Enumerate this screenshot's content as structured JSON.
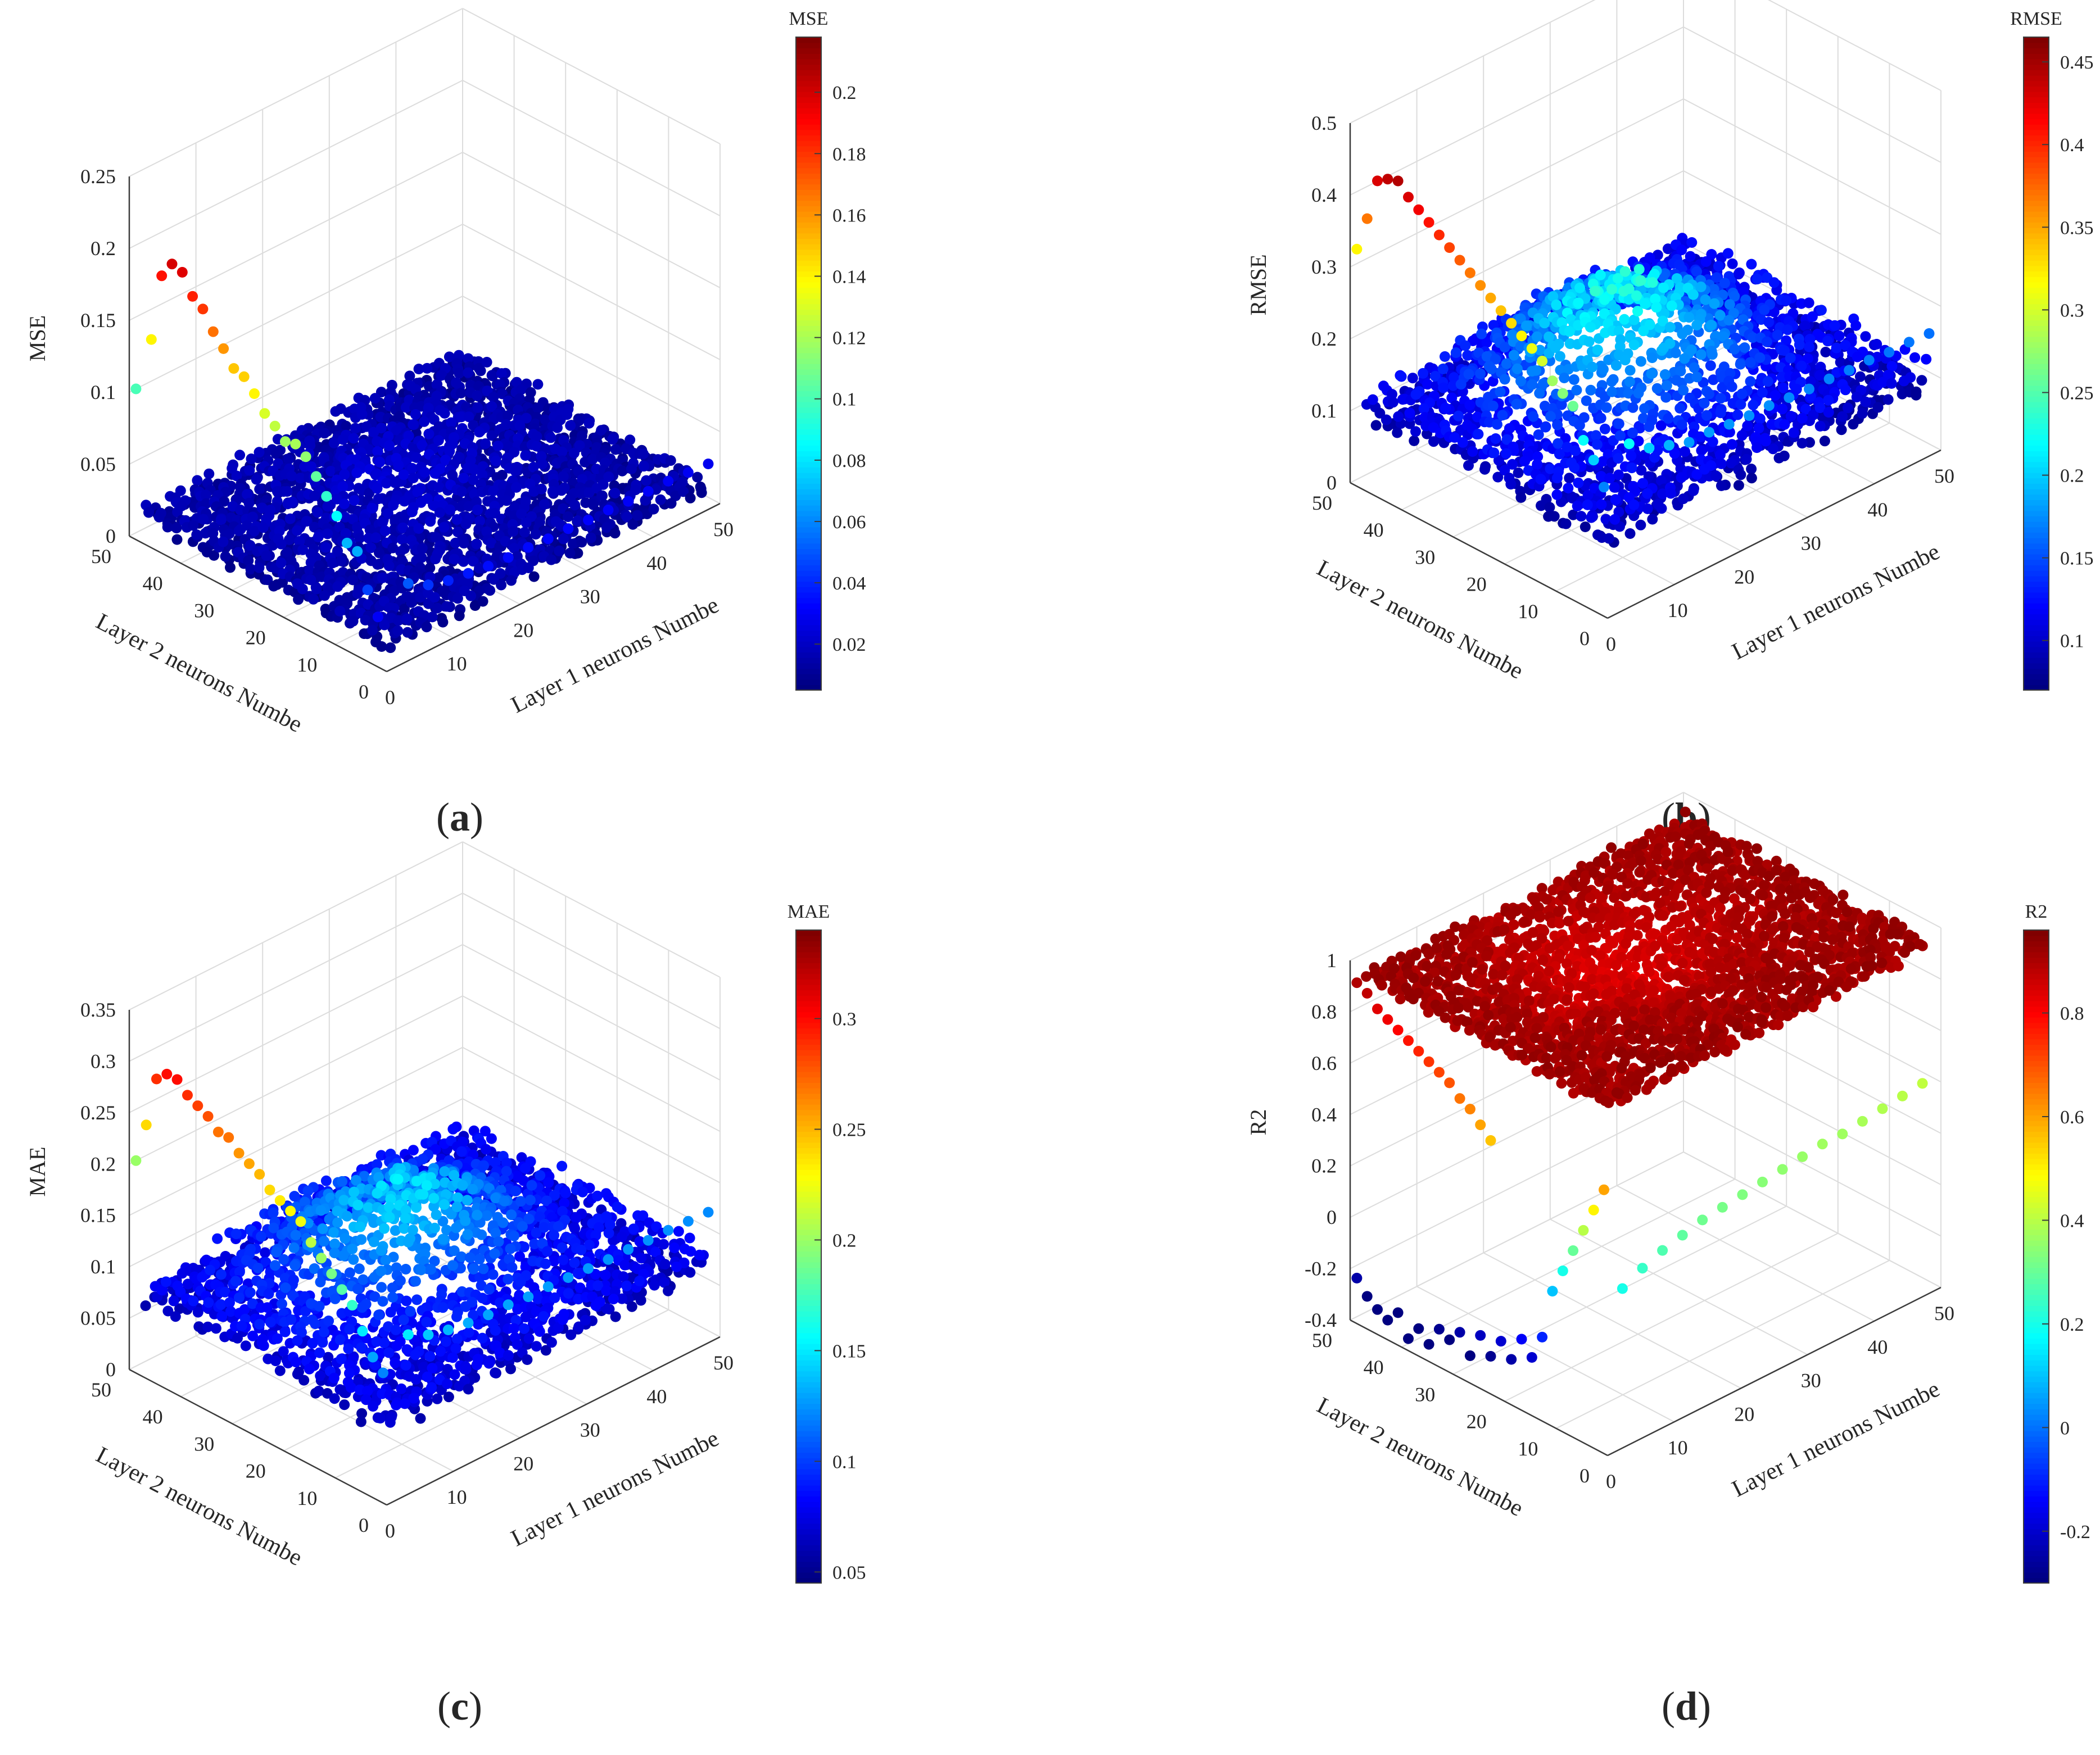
{
  "chart_data": [
    {
      "type": "scatter",
      "panel": "a",
      "caption_letter": "a",
      "title": "",
      "zlabel": "MSE",
      "xlabel": "Layer 1 neurons Numbe",
      "ylabel": "Layer 2 neurons Numbe",
      "colorbar_title": "MSE",
      "x_ticks": [
        "0",
        "10",
        "20",
        "30",
        "40",
        "50"
      ],
      "y_ticks": [
        "0",
        "10",
        "20",
        "30",
        "40",
        "50"
      ],
      "z_ticks": [
        "0",
        "0.05",
        "0.1",
        "0.15",
        "0.2",
        "0.25"
      ],
      "zlim": [
        0,
        0.25
      ],
      "colorbar_ticks": [
        "0.02",
        "0.04",
        "0.06",
        "0.08",
        "0.1",
        "0.12",
        "0.14",
        "0.16",
        "0.18",
        "0.2"
      ],
      "clim": [
        0.005,
        0.218
      ],
      "surface": {
        "mean": 0.012,
        "spread": 0.012,
        "ridge": 0.004
      },
      "outlier_series": [
        {
          "name": "Layer 1 = 1",
          "points": [
            [
              1,
              50,
              0.1
            ],
            [
              1,
              47,
              0.14
            ],
            [
              1,
              45,
              0.188
            ],
            [
              1,
              43,
              0.2
            ],
            [
              1,
              41,
              0.198
            ],
            [
              1,
              39,
              0.185
            ],
            [
              1,
              37,
              0.18
            ],
            [
              1,
              35,
              0.168
            ],
            [
              1,
              33,
              0.16
            ],
            [
              1,
              31,
              0.15
            ],
            [
              1,
              29,
              0.148
            ],
            [
              1,
              27,
              0.14
            ],
            [
              1,
              25,
              0.13
            ],
            [
              1,
              23,
              0.125
            ],
            [
              1,
              21,
              0.118
            ],
            [
              1,
              19,
              0.12
            ],
            [
              1,
              17,
              0.115
            ],
            [
              1,
              15,
              0.105
            ],
            [
              1,
              13,
              0.095
            ],
            [
              1,
              11,
              0.085
            ],
            [
              1,
              9,
              0.07
            ],
            [
              1,
              7,
              0.068
            ],
            [
              1,
              5,
              0.045
            ],
            [
              1,
              3,
              0.03
            ]
          ]
        },
        {
          "name": "Layer 2 = 1",
          "points": [
            [
              4,
              1,
              0.05
            ],
            [
              7,
              1,
              0.042
            ],
            [
              10,
              1,
              0.038
            ],
            [
              13,
              1,
              0.036
            ],
            [
              16,
              1,
              0.034
            ],
            [
              19,
              1,
              0.033
            ],
            [
              22,
              1,
              0.033
            ],
            [
              25,
              1,
              0.032
            ],
            [
              28,
              1,
              0.032
            ],
            [
              31,
              1,
              0.031
            ],
            [
              34,
              1,
              0.031
            ],
            [
              37,
              1,
              0.03
            ],
            [
              40,
              1,
              0.03
            ],
            [
              43,
              1,
              0.03
            ],
            [
              46,
              1,
              0.029
            ],
            [
              49,
              1,
              0.028
            ]
          ]
        }
      ]
    },
    {
      "type": "scatter",
      "panel": "b",
      "caption_letter": "b",
      "title": "",
      "zlabel": "RMSE",
      "xlabel": "Layer 1 neurons Numbe",
      "ylabel": "Layer 2 neurons Numbe",
      "colorbar_title": "RMSE",
      "x_ticks": [
        "0",
        "10",
        "20",
        "30",
        "40",
        "50"
      ],
      "y_ticks": [
        "0",
        "10",
        "20",
        "30",
        "40",
        "50"
      ],
      "z_ticks": [
        "0",
        "0.1",
        "0.2",
        "0.3",
        "0.4",
        "0.5"
      ],
      "zlim": [
        0,
        0.5
      ],
      "colorbar_ticks": [
        "0.1",
        "0.15",
        "0.2",
        "0.25",
        "0.3",
        "0.35",
        "0.4",
        "0.45"
      ],
      "clim": [
        0.07,
        0.465
      ],
      "surface": {
        "mean": 0.1,
        "spread": 0.045,
        "ridge": 0.06
      },
      "outlier_series": [
        {
          "name": "Layer 1 = 1",
          "points": [
            [
              1,
              50,
              0.32
            ],
            [
              1,
              48,
              0.37
            ],
            [
              1,
              46,
              0.43
            ],
            [
              1,
              44,
              0.44
            ],
            [
              1,
              42,
              0.445
            ],
            [
              1,
              40,
              0.43
            ],
            [
              1,
              38,
              0.42
            ],
            [
              1,
              36,
              0.41
            ],
            [
              1,
              34,
              0.4
            ],
            [
              1,
              32,
              0.39
            ],
            [
              1,
              30,
              0.38
            ],
            [
              1,
              28,
              0.37
            ],
            [
              1,
              26,
              0.36
            ],
            [
              1,
              24,
              0.35
            ],
            [
              1,
              22,
              0.34
            ],
            [
              1,
              20,
              0.33
            ],
            [
              1,
              18,
              0.32
            ],
            [
              1,
              16,
              0.31
            ],
            [
              1,
              14,
              0.3
            ],
            [
              1,
              12,
              0.28
            ],
            [
              1,
              10,
              0.27
            ],
            [
              1,
              8,
              0.26
            ],
            [
              1,
              6,
              0.22
            ],
            [
              1,
              4,
              0.2
            ],
            [
              1,
              2,
              0.17
            ]
          ]
        },
        {
          "name": "Layer 2 = 1",
          "points": [
            [
              4,
              1,
              0.22
            ],
            [
              7,
              1,
              0.2
            ],
            [
              10,
              1,
              0.19
            ],
            [
              13,
              1,
              0.18
            ],
            [
              16,
              1,
              0.18
            ],
            [
              19,
              1,
              0.177
            ],
            [
              22,
              1,
              0.175
            ],
            [
              25,
              1,
              0.175
            ],
            [
              28,
              1,
              0.172
            ],
            [
              31,
              1,
              0.17
            ],
            [
              34,
              1,
              0.17
            ],
            [
              37,
              1,
              0.168
            ],
            [
              40,
              1,
              0.168
            ],
            [
              43,
              1,
              0.165
            ],
            [
              46,
              1,
              0.165
            ],
            [
              49,
              1,
              0.163
            ]
          ]
        }
      ]
    },
    {
      "type": "scatter",
      "panel": "c",
      "caption_letter": "c",
      "title": "",
      "zlabel": "MAE",
      "xlabel": "Layer 1 neurons Numbe",
      "ylabel": "Layer 2 neurons Numbe",
      "colorbar_title": "MAE",
      "x_ticks": [
        "0",
        "10",
        "20",
        "30",
        "40",
        "50"
      ],
      "y_ticks": [
        "0",
        "10",
        "20",
        "30",
        "40",
        "50"
      ],
      "z_ticks": [
        "0",
        "0.05",
        "0.1",
        "0.15",
        "0.2",
        "0.25",
        "0.3",
        "0.35"
      ],
      "zlim": [
        0,
        0.35
      ],
      "colorbar_ticks": [
        "0.05",
        "0.1",
        "0.15",
        "0.2",
        "0.25",
        "0.3"
      ],
      "clim": [
        0.045,
        0.34
      ],
      "surface": {
        "mean": 0.07,
        "spread": 0.03,
        "ridge": 0.035
      },
      "outlier_series": [
        {
          "name": "Layer 1 = 1",
          "points": [
            [
              1,
              50,
              0.2
            ],
            [
              1,
              48,
              0.24
            ],
            [
              1,
              46,
              0.29
            ],
            [
              1,
              44,
              0.3
            ],
            [
              1,
              42,
              0.3
            ],
            [
              1,
              40,
              0.29
            ],
            [
              1,
              38,
              0.285
            ],
            [
              1,
              36,
              0.28
            ],
            [
              1,
              34,
              0.27
            ],
            [
              1,
              32,
              0.27
            ],
            [
              1,
              30,
              0.26
            ],
            [
              1,
              28,
              0.255
            ],
            [
              1,
              26,
              0.25
            ],
            [
              1,
              24,
              0.24
            ],
            [
              1,
              22,
              0.235
            ],
            [
              1,
              20,
              0.23
            ],
            [
              1,
              18,
              0.225
            ],
            [
              1,
              16,
              0.21
            ],
            [
              1,
              14,
              0.2
            ],
            [
              1,
              12,
              0.19
            ],
            [
              1,
              10,
              0.18
            ],
            [
              1,
              8,
              0.17
            ],
            [
              1,
              6,
              0.15
            ],
            [
              1,
              4,
              0.13
            ],
            [
              1,
              2,
              0.12
            ]
          ]
        },
        {
          "name": "Layer 2 = 1",
          "points": [
            [
              4,
              1,
              0.15
            ],
            [
              7,
              1,
              0.14
            ],
            [
              10,
              1,
              0.135
            ],
            [
              13,
              1,
              0.132
            ],
            [
              16,
              1,
              0.13
            ],
            [
              19,
              1,
              0.13
            ],
            [
              22,
              1,
              0.128
            ],
            [
              25,
              1,
              0.128
            ],
            [
              28,
              1,
              0.127
            ],
            [
              31,
              1,
              0.126
            ],
            [
              34,
              1,
              0.125
            ],
            [
              37,
              1,
              0.125
            ],
            [
              40,
              1,
              0.124
            ],
            [
              43,
              1,
              0.124
            ],
            [
              46,
              1,
              0.123
            ],
            [
              49,
              1,
              0.122
            ]
          ]
        }
      ]
    },
    {
      "type": "scatter",
      "panel": "d",
      "caption_letter": "d",
      "title": "",
      "zlabel": "R2",
      "xlabel": "Layer 1 neurons Numbe",
      "ylabel": "Layer 2 neurons Numbe",
      "colorbar_title": "R2",
      "x_ticks": [
        "0",
        "10",
        "20",
        "30",
        "40",
        "50"
      ],
      "y_ticks": [
        "0",
        "10",
        "20",
        "30",
        "40",
        "50"
      ],
      "z_ticks": [
        "-0.4",
        "-0.2",
        "0",
        "0.2",
        "0.4",
        "0.6",
        "0.8",
        "1"
      ],
      "zlim": [
        -0.4,
        1
      ],
      "colorbar_ticks": [
        "-0.2",
        "0",
        "0.2",
        "0.4",
        "0.6",
        "0.8"
      ],
      "clim": [
        -0.3,
        0.96
      ],
      "surface": {
        "mean": 0.92,
        "spread": 0.05,
        "ridge": -0.04
      },
      "outlier_series": [
        {
          "name": "Layer 1 = 1 (upper)",
          "points": [
            [
              1,
              50,
              0.9
            ],
            [
              1,
              48,
              0.88
            ],
            [
              1,
              46,
              0.84
            ],
            [
              1,
              44,
              0.82
            ],
            [
              1,
              42,
              0.8
            ],
            [
              1,
              40,
              0.78
            ],
            [
              1,
              38,
              0.76
            ],
            [
              1,
              36,
              0.74
            ],
            [
              1,
              34,
              0.72
            ],
            [
              1,
              32,
              0.7
            ],
            [
              1,
              30,
              0.66
            ],
            [
              1,
              28,
              0.64
            ],
            [
              1,
              26,
              0.6
            ],
            [
              1,
              24,
              0.56
            ]
          ]
        },
        {
          "name": "Layer 1 = 1 (lower)",
          "points": [
            [
              1,
              50,
              -0.25
            ],
            [
              1,
              48,
              -0.3
            ],
            [
              1,
              46,
              -0.33
            ],
            [
              1,
              44,
              -0.35
            ],
            [
              1,
              42,
              -0.3
            ],
            [
              1,
              40,
              -0.38
            ],
            [
              1,
              38,
              -0.32
            ],
            [
              1,
              36,
              -0.36
            ],
            [
              1,
              34,
              -0.28
            ],
            [
              1,
              32,
              -0.3
            ],
            [
              1,
              30,
              -0.25
            ],
            [
              1,
              28,
              -0.32
            ],
            [
              1,
              26,
              -0.22
            ],
            [
              1,
              24,
              -0.28
            ],
            [
              1,
              22,
              -0.2
            ],
            [
              1,
              20,
              -0.25
            ],
            [
              1,
              18,
              -0.15
            ],
            [
              1,
              16,
              -0.2
            ],
            [
              1,
              14,
              -0.1
            ],
            [
              1,
              12,
              0.1
            ],
            [
              1,
              10,
              0.2
            ],
            [
              1,
              8,
              0.3
            ],
            [
              1,
              6,
              0.4
            ],
            [
              1,
              4,
              0.5
            ],
            [
              1,
              2,
              0.6
            ]
          ]
        },
        {
          "name": "Layer 2 = 1",
          "points": [
            [
              3,
              1,
              0.2
            ],
            [
              6,
              1,
              0.24
            ],
            [
              9,
              1,
              0.27
            ],
            [
              12,
              1,
              0.29
            ],
            [
              15,
              1,
              0.31
            ],
            [
              18,
              1,
              0.32
            ],
            [
              21,
              1,
              0.33
            ],
            [
              24,
              1,
              0.34
            ],
            [
              27,
              1,
              0.35
            ],
            [
              30,
              1,
              0.36
            ],
            [
              33,
              1,
              0.37
            ],
            [
              36,
              1,
              0.37
            ],
            [
              39,
              1,
              0.38
            ],
            [
              42,
              1,
              0.39
            ],
            [
              45,
              1,
              0.4
            ],
            [
              48,
              1,
              0.41
            ]
          ]
        }
      ]
    }
  ]
}
